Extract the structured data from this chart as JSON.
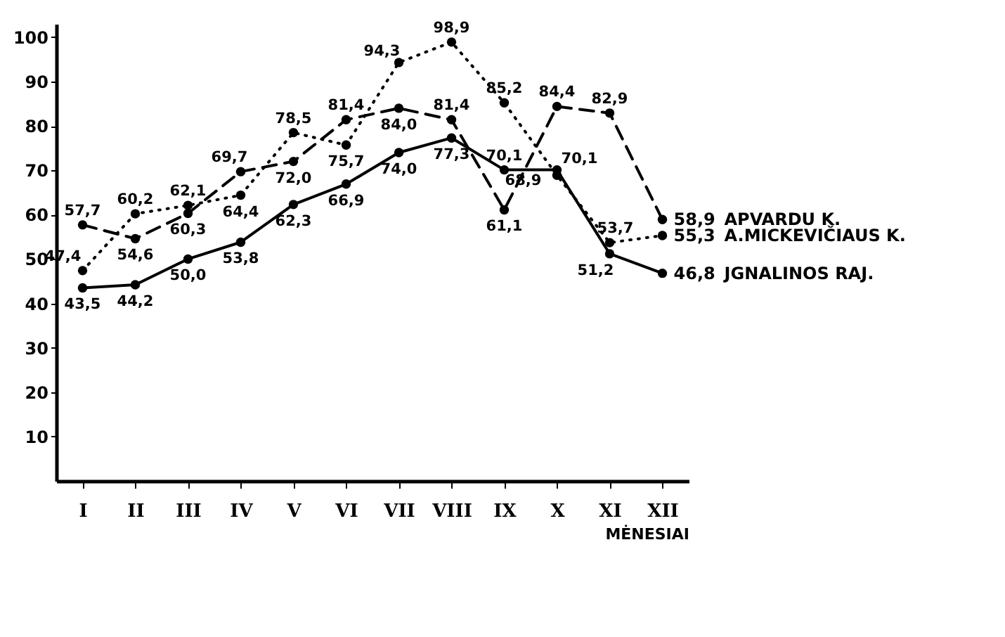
{
  "chart_data": {
    "type": "line",
    "xlabel": "MĖNESIAI",
    "categories": [
      "I",
      "II",
      "III",
      "IV",
      "V",
      "VI",
      "VII",
      "VIII",
      "IX",
      "X",
      "XI",
      "XII"
    ],
    "series": [
      {
        "name": "APVARDU K.",
        "color": "#000000",
        "line_style": "dashed",
        "values": [
          57.7,
          54.6,
          60.3,
          69.7,
          72.0,
          81.4,
          84.0,
          81.4,
          61.1,
          84.4,
          82.9,
          58.9
        ],
        "value_labels": [
          "57,7",
          "54,6",
          "60,3",
          "69,7",
          "72,0",
          "81,4",
          "84,0",
          "81,4",
          "61,1",
          "84,4",
          "82,9",
          "58,9"
        ]
      },
      {
        "name": "A.MICKEVIČIAUS K.",
        "color": "#000000",
        "line_style": "dotted",
        "values": [
          47.4,
          60.2,
          62.1,
          64.4,
          78.5,
          75.7,
          94.3,
          98.9,
          85.2,
          68.9,
          53.7,
          55.3
        ],
        "value_labels": [
          "47,4",
          "60,2",
          "62,1",
          "64,4",
          "78,5",
          "75,7",
          "94,3",
          "98,9",
          "85,2",
          "68,9",
          "53,7",
          "55,3"
        ]
      },
      {
        "name": "JGNALINOS RAJ.",
        "color": "#000000",
        "line_style": "solid",
        "values": [
          43.5,
          44.2,
          50.0,
          53.8,
          62.3,
          66.9,
          74.0,
          77.3,
          70.1,
          70.1,
          51.2,
          46.8
        ],
        "value_labels": [
          "43,5",
          "44,2",
          "50,0",
          "53,8",
          "62,3",
          "66,9",
          "74,0",
          "77,3",
          "70,1",
          "70,1",
          "51,2",
          "46,8"
        ]
      }
    ],
    "ylim": [
      0,
      103
    ],
    "yticks": [
      10,
      20,
      30,
      40,
      50,
      60,
      70,
      80,
      90,
      100
    ],
    "grid": false,
    "marker": "circle"
  }
}
